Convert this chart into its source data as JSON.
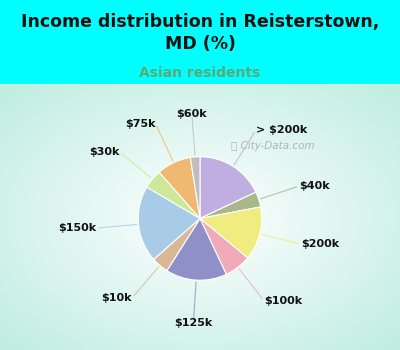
{
  "title": "Income distribution in Reisterstown,\nMD (%)",
  "subtitle": "Asian residents",
  "title_color": "#111111",
  "subtitle_color": "#5aaa77",
  "bg_cyan": "#00ffff",
  "bg_chart_color1": "#e8f8f0",
  "bg_chart_color2": "#c8eee0",
  "labels": [
    "> $200k",
    "$40k",
    "$200k",
    "$100k",
    "$125k",
    "$10k",
    "$150k",
    "$30k",
    "$75k",
    "$60k"
  ],
  "values": [
    18.0,
    4.0,
    14.0,
    7.0,
    16.0,
    4.5,
    20.0,
    5.0,
    9.0,
    2.5
  ],
  "colors": [
    "#c0aee0",
    "#a8b888",
    "#f0ec80",
    "#f0aab8",
    "#9090c8",
    "#d8b898",
    "#a8cce8",
    "#cce898",
    "#f0b870",
    "#c0bcc0"
  ],
  "startangle": 90,
  "label_fontsize": 8.0,
  "watermark": "  City-Data.com"
}
